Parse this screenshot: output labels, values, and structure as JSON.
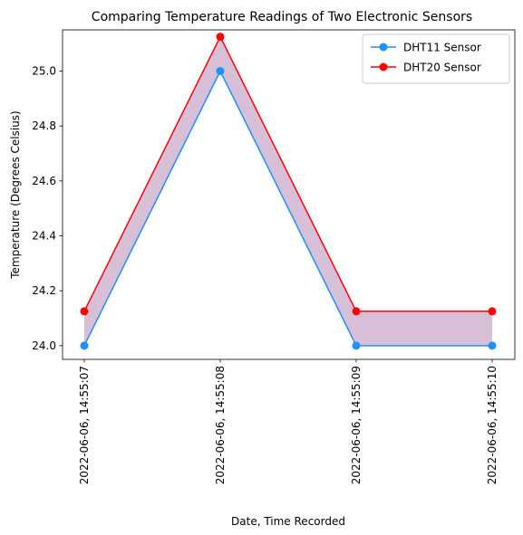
{
  "chart_data": {
    "type": "line",
    "title": "Comparing Temperature Readings of Two Electronic Sensors",
    "xlabel": "Date, Time Recorded",
    "ylabel": "Temperature (Degrees Celsius)",
    "categories": [
      "2022-06-06, 14:55:07",
      "2022-06-06, 14:55:08",
      "2022-06-06, 14:55:09",
      "2022-06-06, 14:55:10"
    ],
    "ylim": [
      23.95,
      25.15
    ],
    "yticks": [
      24.0,
      24.2,
      24.4,
      24.6,
      24.8,
      25.0
    ],
    "ytick_labels": [
      "24.0",
      "24.2",
      "24.4",
      "24.6",
      "24.8",
      "25.0"
    ],
    "grid": false,
    "legend_position": "upper right",
    "fill_between": {
      "series": [
        0,
        1
      ],
      "color": "#d8bfd8"
    },
    "series": [
      {
        "name": "DHT11 Sensor",
        "values": [
          24.0,
          25.0,
          24.0,
          24.0
        ],
        "color": "#1e90ff",
        "marker": "circle"
      },
      {
        "name": "DHT20 Sensor",
        "values": [
          24.125,
          25.125,
          24.125,
          24.125
        ],
        "color": "#ff0000",
        "marker": "circle"
      }
    ]
  }
}
